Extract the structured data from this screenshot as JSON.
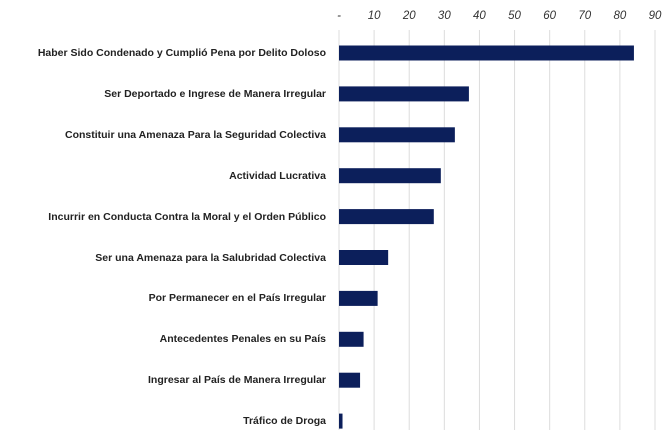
{
  "chart_data": {
    "type": "bar",
    "orientation": "horizontal",
    "categories": [
      "Haber Sido Condenado y Cumplió Pena por Delito Doloso",
      "Ser Deportado e Ingrese de Manera Irregular",
      "Constituir una Amenaza Para la Seguridad Colectiva",
      "Actividad Lucrativa",
      "Incurrir en Conducta Contra la Moral y el Orden Público",
      "Ser una Amenaza para la Salubridad Colectiva",
      "Por Permanecer en el País Irregular",
      "Antecedentes Penales en su País",
      "Ingresar al País de Manera Irregular",
      "Tráfico de Droga"
    ],
    "values": [
      84,
      37,
      33,
      29,
      27,
      14,
      11,
      7,
      6,
      1
    ],
    "color": "#0c1f5b",
    "xlim": [
      0,
      90
    ],
    "xticks": [
      {
        "value": 0,
        "label": "-"
      },
      10,
      20,
      30,
      40,
      50,
      60,
      70,
      80,
      90
    ],
    "grid": true
  }
}
